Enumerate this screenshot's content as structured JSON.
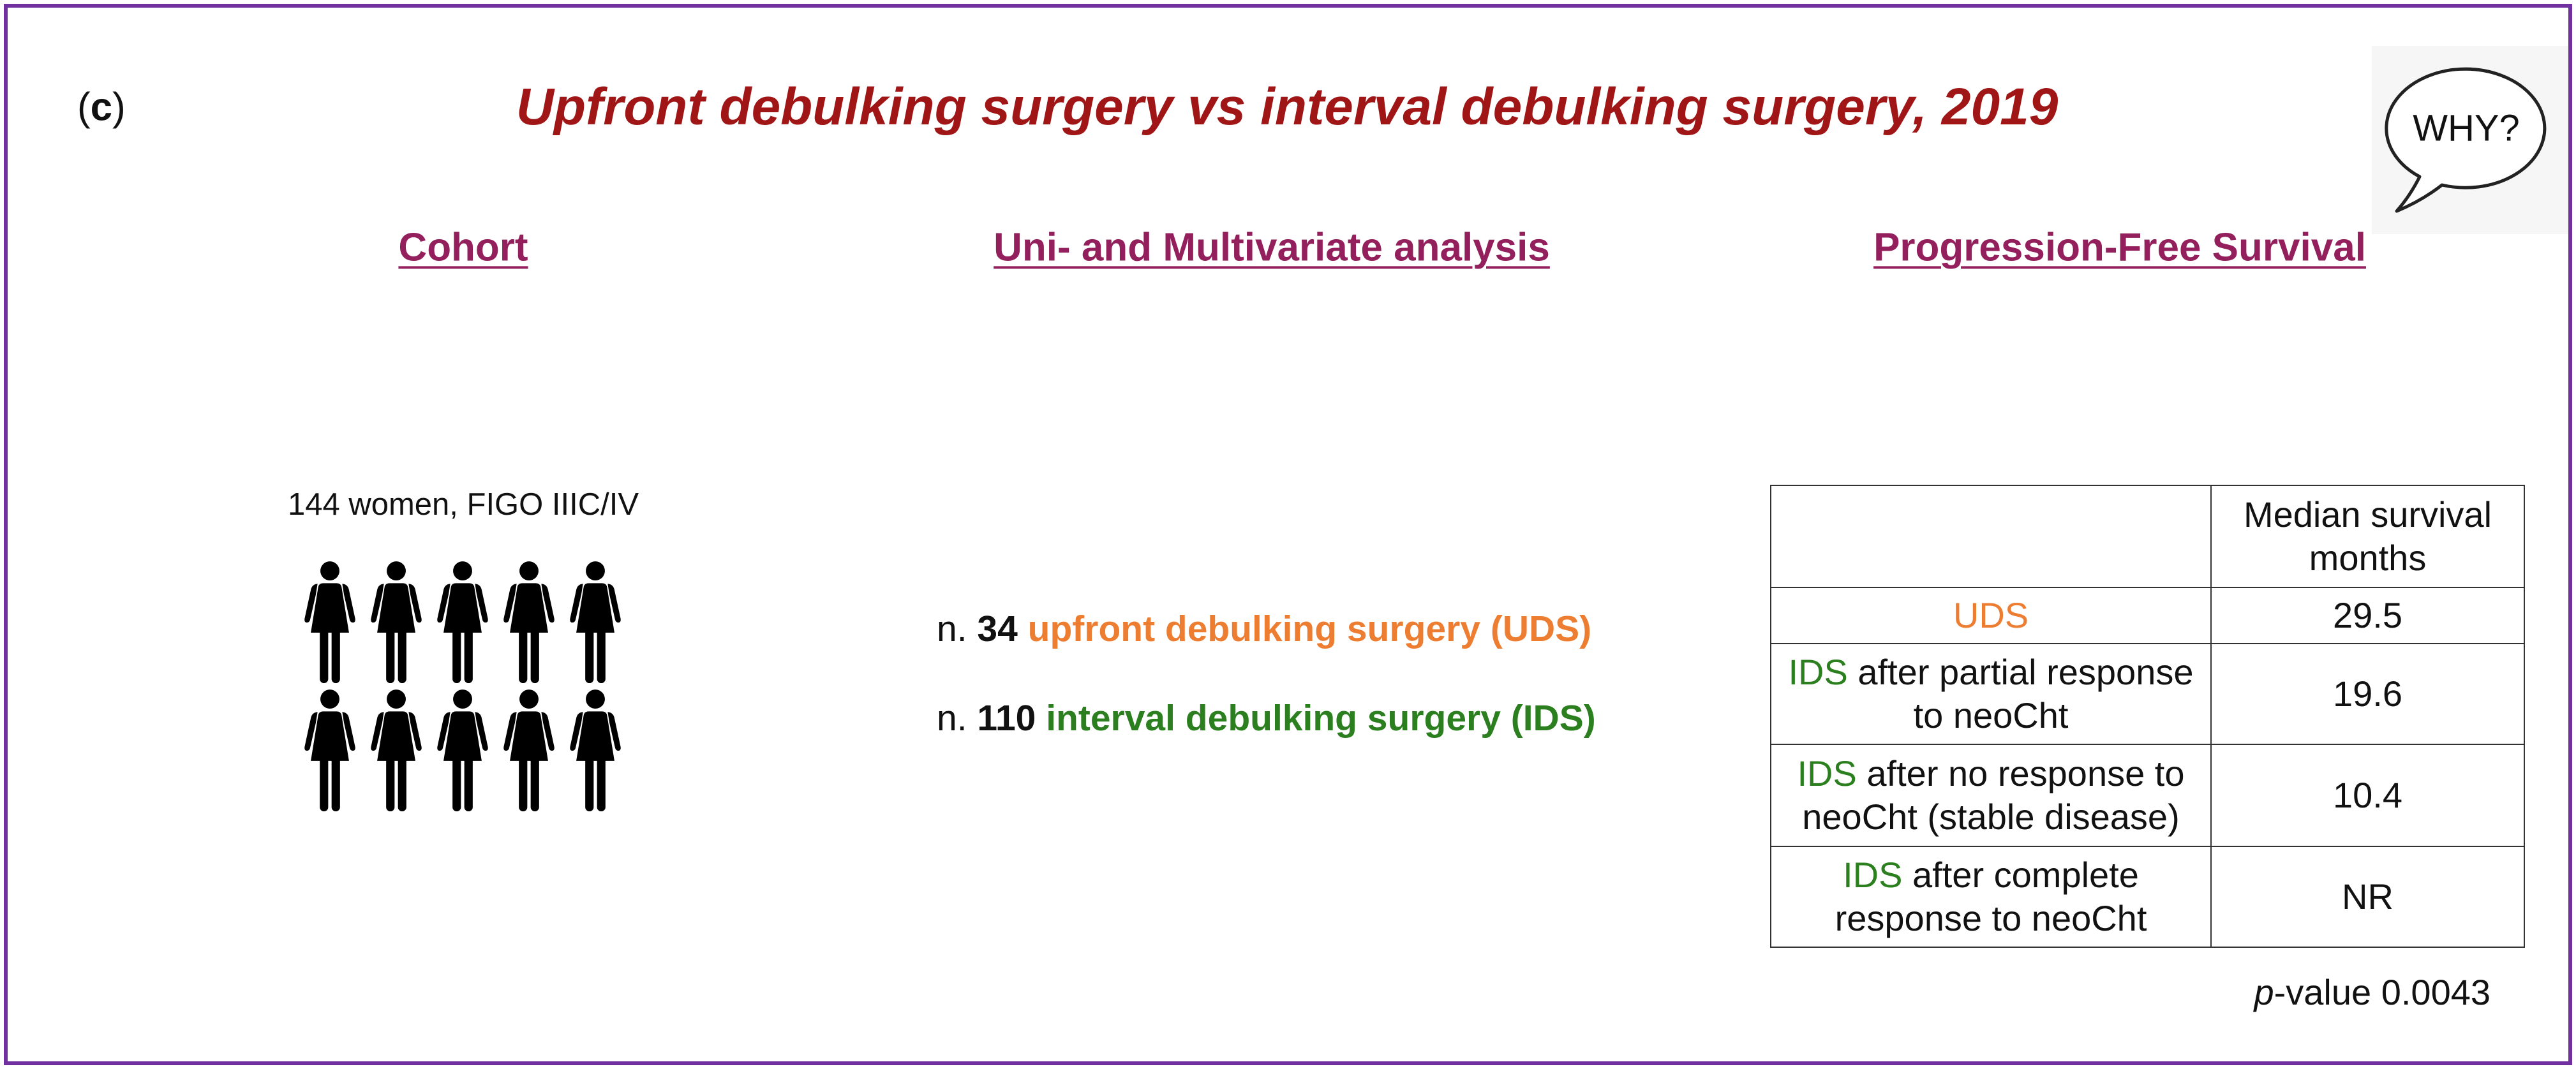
{
  "panel": {
    "open": "(",
    "letter": "c",
    "close": ")"
  },
  "title": "Upfront debulking surgery vs interval debulking surgery, 2019",
  "speech_bubble": {
    "text": "WHY?",
    "icon": "speech-bubble-icon"
  },
  "sections": {
    "cohort": {
      "heading": "Cohort",
      "description": "144 women, FIGO IIIC/IV",
      "icon": "woman-icon"
    },
    "analysis": {
      "heading": "Uni- and Multivariate analysis",
      "groups": [
        {
          "prefix": "n.",
          "count": "34",
          "label": "upfront debulking surgery (UDS)"
        },
        {
          "prefix": "n.",
          "count": "110",
          "label": "interval debulking surgery (IDS)"
        }
      ]
    },
    "pfs": {
      "heading": "Progression-Free Survival",
      "table": {
        "value_header": "Median survival\nmonths",
        "rows": [
          {
            "group": "UDS",
            "value": "29.5"
          },
          {
            "group": "IDS",
            "detail": "after partial response\nto neoCht",
            "value": "19.6"
          },
          {
            "group": "IDS",
            "detail": "after no response to\nneoCht (stable disease)",
            "value": "10.4"
          },
          {
            "group": "IDS",
            "detail": "after complete\nresponse to neoCht",
            "value": "NR"
          }
        ]
      },
      "p_value": {
        "symbol": "p",
        "label": "-value",
        "value": "0.0043"
      }
    }
  },
  "colors": {
    "frame": "#7030a0",
    "title": "#a01616",
    "heading": "#931f5c",
    "uds": "#ed7d31",
    "ids": "#2b7f1f",
    "text": "#111111"
  }
}
